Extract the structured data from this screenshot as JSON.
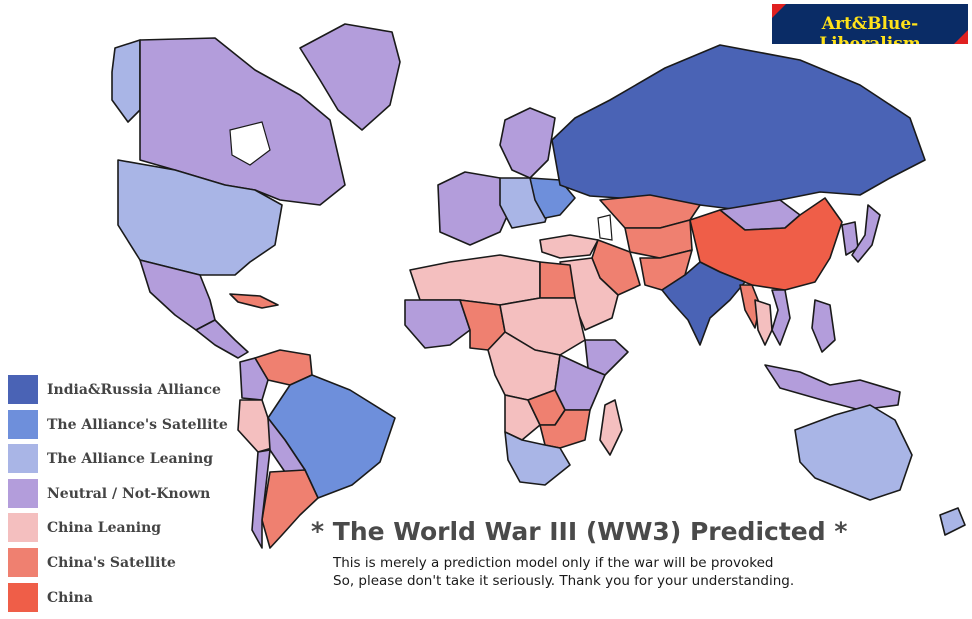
{
  "brand": "Art&Blue-Liberalism",
  "title": "* The World War III (WW3) Predicted *",
  "subtitle_lines": [
    "This is merely a prediction model only if the war will be provoked",
    "So, please don't take it seriously.  Thank you for your understanding."
  ],
  "colors": {
    "alliance": "#4a63b5",
    "satellite": "#6e8fdb",
    "alliance_leaning": "#a9b5e6",
    "neutral": "#b39ddb",
    "china_leaning": "#f4bfbf",
    "china_satellite": "#ef8070",
    "china": "#ef5e48",
    "badge_bg": "#0a2c66",
    "badge_text": "#ffe21a",
    "badge_corner": "#e02020"
  },
  "legend": [
    {
      "label": "India&Russia Alliance",
      "color_key": "alliance"
    },
    {
      "label": "The Alliance's Satellite",
      "color_key": "satellite"
    },
    {
      "label": "The Alliance Leaning",
      "color_key": "alliance_leaning"
    },
    {
      "label": "Neutral / Not-Known",
      "color_key": "neutral"
    },
    {
      "label": "China Leaning",
      "color_key": "china_leaning"
    },
    {
      "label": "China's Satellite",
      "color_key": "china_satellite"
    },
    {
      "label": "China",
      "color_key": "china"
    }
  ],
  "regions": [
    {
      "name": "Alaska",
      "category": "alliance_leaning"
    },
    {
      "name": "Canada",
      "category": "neutral"
    },
    {
      "name": "Greenland",
      "category": "neutral"
    },
    {
      "name": "United States",
      "category": "alliance_leaning"
    },
    {
      "name": "Mexico",
      "category": "neutral"
    },
    {
      "name": "Cuba",
      "category": "china_satellite"
    },
    {
      "name": "Central America",
      "category": "neutral"
    },
    {
      "name": "Venezuela",
      "category": "china_satellite"
    },
    {
      "name": "Colombia",
      "category": "neutral"
    },
    {
      "name": "Brazil",
      "category": "satellite"
    },
    {
      "name": "Peru",
      "category": "china_leaning"
    },
    {
      "name": "Bolivia",
      "category": "neutral"
    },
    {
      "name": "Argentina",
      "category": "china_satellite"
    },
    {
      "name": "Chile",
      "category": "neutral"
    },
    {
      "name": "Scandinavia",
      "category": "neutral"
    },
    {
      "name": "Western Europe",
      "category": "neutral"
    },
    {
      "name": "Eastern Europe",
      "category": "alliance_leaning"
    },
    {
      "name": "Ukraine",
      "category": "satellite"
    },
    {
      "name": "Russia",
      "category": "alliance"
    },
    {
      "name": "Kazakhstan",
      "category": "china_satellite"
    },
    {
      "name": "Central Asia",
      "category": "china_satellite"
    },
    {
      "name": "Mongolia",
      "category": "neutral"
    },
    {
      "name": "China",
      "category": "china"
    },
    {
      "name": "Turkey",
      "category": "china_leaning"
    },
    {
      "name": "Iran",
      "category": "china_satellite"
    },
    {
      "name": "Saudi Arabia",
      "category": "china_leaning"
    },
    {
      "name": "Pakistan",
      "category": "china_satellite"
    },
    {
      "name": "India",
      "category": "alliance"
    },
    {
      "name": "Myanmar",
      "category": "china_satellite"
    },
    {
      "name": "Thailand",
      "category": "china_leaning"
    },
    {
      "name": "Vietnam",
      "category": "neutral"
    },
    {
      "name": "Korea",
      "category": "neutral"
    },
    {
      "name": "Japan",
      "category": "neutral"
    },
    {
      "name": "Indonesia",
      "category": "neutral"
    },
    {
      "name": "Philippines",
      "category": "neutral"
    },
    {
      "name": "North Africa",
      "category": "china_leaning"
    },
    {
      "name": "Egypt",
      "category": "china_satellite"
    },
    {
      "name": "West Africa",
      "category": "neutral"
    },
    {
      "name": "Nigeria",
      "category": "china_satellite"
    },
    {
      "name": "Sudan",
      "category": "china_leaning"
    },
    {
      "name": "Horn of Africa",
      "category": "neutral"
    },
    {
      "name": "Central Africa",
      "category": "china_leaning"
    },
    {
      "name": "East Africa",
      "category": "neutral"
    },
    {
      "name": "Angola",
      "category": "china_leaning"
    },
    {
      "name": "Zambia",
      "category": "china_satellite"
    },
    {
      "name": "Zimbabwe",
      "category": "china_satellite"
    },
    {
      "name": "Southern Africa",
      "category": "alliance_leaning"
    },
    {
      "name": "Madagascar",
      "category": "china_leaning"
    },
    {
      "name": "Australia",
      "category": "alliance_leaning"
    },
    {
      "name": "New Zealand",
      "category": "alliance_leaning"
    }
  ]
}
